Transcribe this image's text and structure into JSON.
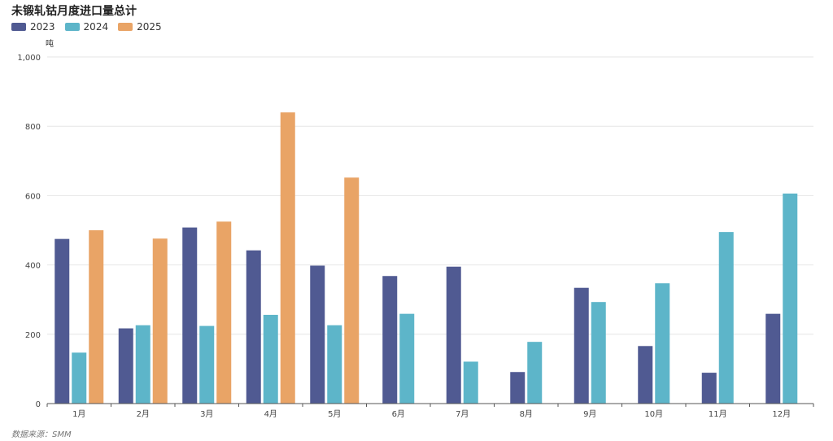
{
  "title": "未锻轧钴月度进口量总计",
  "source": "数据来源：SMM",
  "colors": {
    "s2023": "#505a92",
    "s2024": "#5db5c9",
    "s2025": "#e9a466"
  },
  "chart_data": {
    "type": "bar",
    "title": "未锻轧钴月度进口量总计",
    "ylabel": "吨",
    "ylim": [
      0,
      1000
    ],
    "yticks": [
      "0",
      "200",
      "400",
      "600",
      "800",
      "1,000"
    ],
    "grid": true,
    "legend_position": "top-left",
    "categories": [
      "1月",
      "2月",
      "3月",
      "4月",
      "5月",
      "6月",
      "7月",
      "8月",
      "9月",
      "10月",
      "11月",
      "12月"
    ],
    "series": [
      {
        "name": "2023",
        "values": [
          475,
          217,
          508,
          442,
          398,
          368,
          395,
          91,
          334,
          166,
          89,
          259
        ]
      },
      {
        "name": "2024",
        "values": [
          147,
          226,
          224,
          256,
          226,
          259,
          121,
          178,
          293,
          347,
          495,
          606
        ]
      },
      {
        "name": "2025",
        "values": [
          500,
          476,
          525,
          840,
          652,
          null,
          null,
          null,
          null,
          null,
          null,
          null
        ]
      }
    ]
  }
}
